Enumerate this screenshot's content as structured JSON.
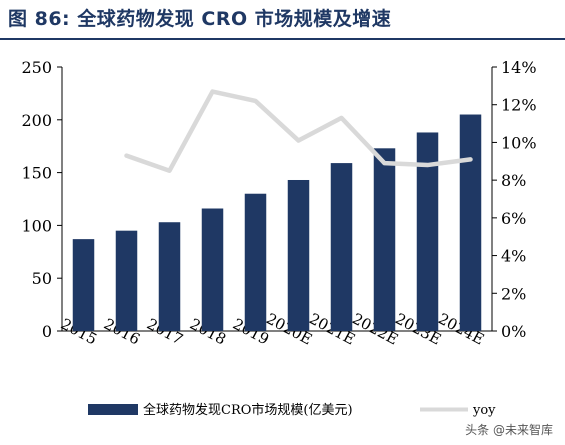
{
  "title": "图 86:  全球药物发现 CRO 市场规模及增速",
  "watermark": "头条 @未来智库",
  "colors": {
    "bar": "#1f3864",
    "line": "#d9d9d9",
    "title": "#1f3864",
    "axis": "#000000"
  },
  "chart_data": {
    "type": "bar",
    "categories": [
      "2015",
      "2016",
      "2017",
      "2018",
      "2019",
      "2020E",
      "2021E",
      "2022E",
      "2023E",
      "2024E"
    ],
    "series": [
      {
        "name": "全球药物发现CRO市场规模(亿美元)",
        "type": "bar",
        "axis": "left",
        "values": [
          87,
          95,
          103,
          116,
          130,
          143,
          159,
          173,
          188,
          205
        ]
      },
      {
        "name": "yoy",
        "type": "line",
        "axis": "right",
        "values": [
          null,
          9.3,
          8.5,
          12.7,
          12.2,
          10.1,
          11.3,
          8.9,
          8.8,
          9.1
        ]
      }
    ],
    "y_left": {
      "min": 0,
      "max": 250,
      "ticks": [
        "0",
        "50",
        "100",
        "150",
        "200",
        "250"
      ]
    },
    "y_right": {
      "min": 0,
      "max": 14,
      "ticks": [
        "0%",
        "2%",
        "4%",
        "6%",
        "8%",
        "10%",
        "12%",
        "14%"
      ]
    },
    "grid": false,
    "legend_position": "bottom"
  }
}
